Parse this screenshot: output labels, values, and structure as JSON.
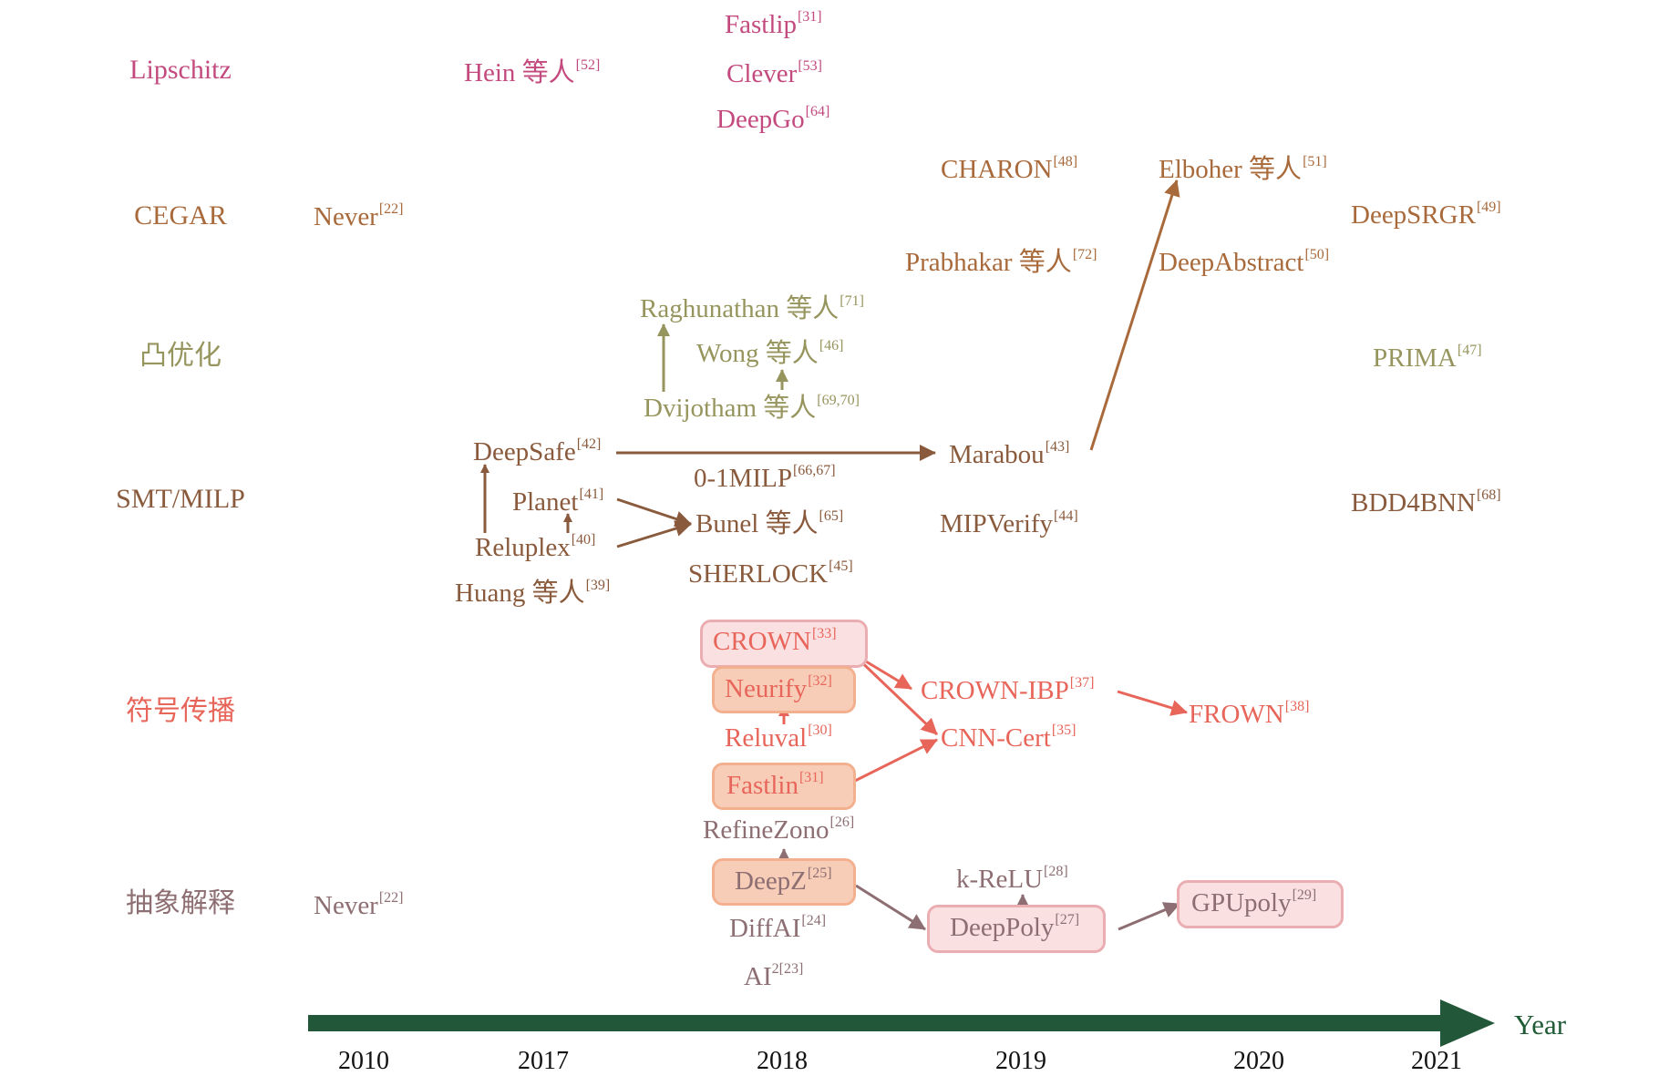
{
  "colors": {
    "lipschitz": "#c34a7e",
    "cegar": "#a96a3b",
    "convex": "#97955e",
    "smt": "#8a5a3c",
    "symbolic": "#e8655a",
    "abstract": "#8d6e72",
    "timeline": "#22573a",
    "box_salmon_fill": "#f8cdb8",
    "box_salmon_border": "#f2b08f",
    "box_pink_fill": "#fbe0e2",
    "box_pink_border": "#e9adb2"
  },
  "categories": {
    "lipschitz": "Lipschitz",
    "cegar": "CEGAR",
    "convex": "凸优化",
    "smt": "SMT/MILP",
    "symbolic": "符号传播",
    "abstract": "抽象解释"
  },
  "items": {
    "fastlip": {
      "name": "Fastlip",
      "ref": "[31]"
    },
    "hein": {
      "name": "Hein 等人",
      "ref": "[52]"
    },
    "clever": {
      "name": "Clever",
      "ref": "[53]"
    },
    "deepgo": {
      "name": "DeepGo",
      "ref": "[64]"
    },
    "charon": {
      "name": "CHARON",
      "ref": "[48]"
    },
    "elboher": {
      "name": "Elboher 等人",
      "ref": "[51]"
    },
    "never_cegar": {
      "name": "Never",
      "ref": "[22]"
    },
    "deepsrgr": {
      "name": "DeepSRGR",
      "ref": "[49]"
    },
    "prabhakar": {
      "name": "Prabhakar 等人",
      "ref": "[72]"
    },
    "deepabstract": {
      "name": "DeepAbstract",
      "ref": "[50]"
    },
    "raghunathan": {
      "name": "Raghunathan 等人",
      "ref": "[71]"
    },
    "wong": {
      "name": "Wong 等人",
      "ref": "[46]"
    },
    "prima": {
      "name": "PRIMA",
      "ref": "[47]"
    },
    "dvijotham": {
      "name": "Dvijotham 等人",
      "ref": "[69,70]"
    },
    "deepsafe": {
      "name": "DeepSafe",
      "ref": "[42]"
    },
    "marabou": {
      "name": "Marabou",
      "ref": "[43]"
    },
    "milp01": {
      "name": "0-1MILP",
      "ref": "[66,67]"
    },
    "planet": {
      "name": "Planet",
      "ref": "[41]"
    },
    "bunel": {
      "name": "Bunel 等人",
      "ref": "[65]"
    },
    "mipverify": {
      "name": "MIPVerify",
      "ref": "[44]"
    },
    "bdd4bnn": {
      "name": "BDD4BNN",
      "ref": "[68]"
    },
    "reluplex": {
      "name": "Reluplex",
      "ref": "[40]"
    },
    "sherlock": {
      "name": "SHERLOCK",
      "ref": "[45]"
    },
    "huang": {
      "name": "Huang 等人",
      "ref": "[39]"
    },
    "crown": {
      "name": "CROWN",
      "ref": "[33]"
    },
    "neurify": {
      "name": "Neurify",
      "ref": "[32]"
    },
    "crownibp": {
      "name": "CROWN-IBP",
      "ref": "[37]"
    },
    "frown": {
      "name": "FROWN",
      "ref": "[38]"
    },
    "reluval": {
      "name": "Reluval",
      "ref": "[30]"
    },
    "cnncert": {
      "name": "CNN-Cert",
      "ref": "[35]"
    },
    "fastlin": {
      "name": "Fastlin",
      "ref": "[31]"
    },
    "refinezono": {
      "name": "RefineZono",
      "ref": "[26]"
    },
    "never_ai": {
      "name": "Never",
      "ref": "[22]"
    },
    "krelu": {
      "name": "k-ReLU",
      "ref": "[28]"
    },
    "deepz": {
      "name": "DeepZ",
      "ref": "[25]"
    },
    "gpupoly": {
      "name": "GPUpoly",
      "ref": "[29]"
    },
    "deeppoly": {
      "name": "DeepPoly",
      "ref": "[27]"
    },
    "diffai": {
      "name": "DiffAI",
      "ref": "[24]"
    },
    "ai2": {
      "name": "AI",
      "sup_exp": "2",
      "ref": "[23]"
    }
  },
  "timeline": {
    "years": [
      "2010",
      "2017",
      "2018",
      "2019",
      "2020",
      "2021"
    ],
    "axis_label": "Year"
  }
}
